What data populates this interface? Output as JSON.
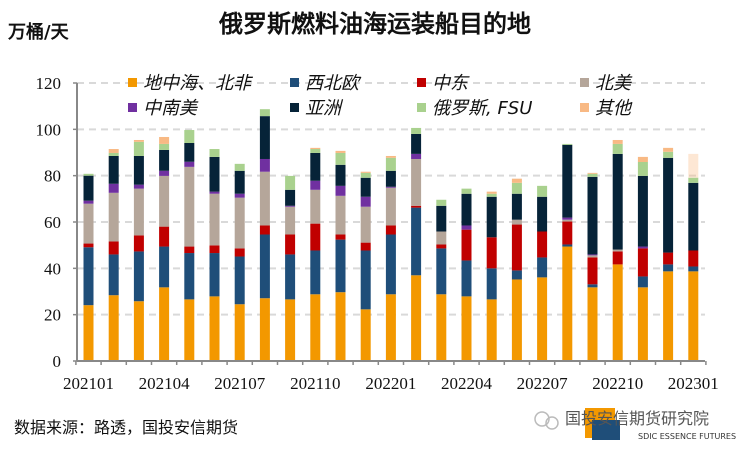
{
  "chart_data": {
    "type": "bar",
    "stacked": true,
    "title": "俄罗斯燃料油海运装船目的地",
    "ylabel": "万桶/天",
    "ylim": [
      0,
      120
    ],
    "yticks": [
      0,
      20,
      40,
      60,
      80,
      100,
      120
    ],
    "grid": "horizontal dashed",
    "legend": "top, inside plot, 2 rows",
    "categories": [
      "202101",
      "202102",
      "202103",
      "202104",
      "202105",
      "202106",
      "202107",
      "202108",
      "202109",
      "202110",
      "202111",
      "202112",
      "202201",
      "202202",
      "202203",
      "202204",
      "202205",
      "202206",
      "202207",
      "202208",
      "202209",
      "202210",
      "202211",
      "202212",
      "202301"
    ],
    "xtick_labels": [
      "202101",
      "202104",
      "202107",
      "202110",
      "202201",
      "202204",
      "202207",
      "202210",
      "202301"
    ],
    "series": [
      {
        "name": "地中海、北非",
        "color": "#F39800",
        "values": [
          24.1,
          28.4,
          25.8,
          31.8,
          26.6,
          27.9,
          24.5,
          27.1,
          26.6,
          28.8,
          29.7,
          22.3,
          28.8,
          37.0,
          28.8,
          27.9,
          26.6,
          35.2,
          36.1,
          49.4,
          31.8,
          41.7,
          31.8,
          38.7,
          38.7
        ]
      },
      {
        "name": "西北欧",
        "color": "#1F4E79",
        "values": [
          25.0,
          17.6,
          21.5,
          17.6,
          20.0,
          18.7,
          20.6,
          27.5,
          19.4,
          18.9,
          22.7,
          25.4,
          25.8,
          29.2,
          19.8,
          15.5,
          13.4,
          3.9,
          8.6,
          0.9,
          1.3,
          0,
          4.7,
          3.0,
          2.1
        ]
      },
      {
        "name": "中东",
        "color": "#C00000",
        "values": [
          1.6,
          5.6,
          6.9,
          8.6,
          2.8,
          3.3,
          3.5,
          3.9,
          8.6,
          11.6,
          2.2,
          3.4,
          3.9,
          0.8,
          1.7,
          13.3,
          13.4,
          19.8,
          11.2,
          9.9,
          11.6,
          5.6,
          12.1,
          5.1,
          6.9
        ]
      },
      {
        "name": "北美",
        "color": "#B5A69A",
        "values": [
          17.2,
          21.0,
          20.2,
          21.9,
          34.4,
          22.3,
          21.9,
          23.2,
          12.0,
          14.6,
          16.7,
          15.5,
          16.3,
          20.2,
          5.6,
          0,
          0,
          2.1,
          0,
          0.8,
          0.9,
          0.8,
          0,
          0,
          0
        ]
      },
      {
        "name": "中南美",
        "color": "#7030A0",
        "values": [
          1.3,
          3.9,
          1.7,
          2.2,
          2.2,
          0.9,
          1.7,
          5.5,
          0.4,
          3.9,
          4.3,
          4.3,
          0.4,
          2.2,
          0,
          1.8,
          0,
          0,
          0,
          0.9,
          0.4,
          0,
          0.8,
          0,
          0
        ]
      },
      {
        "name": "亚洲",
        "color": "#062338",
        "values": [
          10.8,
          12.0,
          12.4,
          9.0,
          8.1,
          15.0,
          9.9,
          18.5,
          6.9,
          12.0,
          9.1,
          8.2,
          6.9,
          8.6,
          11.1,
          13.7,
          17.5,
          11.2,
          15.0,
          31.4,
          33.5,
          41.3,
          30.5,
          40.9,
          29.2
        ]
      },
      {
        "name": "俄罗斯, FSU",
        "color": "#A9D18E",
        "values": [
          0.8,
          1.3,
          6.1,
          2.6,
          5.6,
          3.4,
          3.0,
          3.0,
          6.0,
          1.7,
          5.1,
          2.1,
          5.6,
          2.6,
          2.6,
          2.2,
          1.3,
          4.7,
          4.7,
          0.4,
          1.3,
          4.3,
          6.0,
          2.6,
          2.2
        ]
      },
      {
        "name": "其他",
        "color": "#F8B984",
        "values": [
          0,
          1.7,
          0.8,
          3.0,
          0,
          0,
          0,
          0,
          0,
          0.5,
          0.9,
          0.5,
          0.8,
          0,
          0,
          0,
          0.9,
          1.8,
          0,
          0,
          0.4,
          1.7,
          2.2,
          1.7,
          10.3
        ]
      }
    ]
  },
  "footer": {
    "source": "数据来源：路透，国投安信期货",
    "logo_text_cn": "国投安信期货研究院",
    "logo_text_en": "SDIC ESSENCE FUTURES"
  }
}
